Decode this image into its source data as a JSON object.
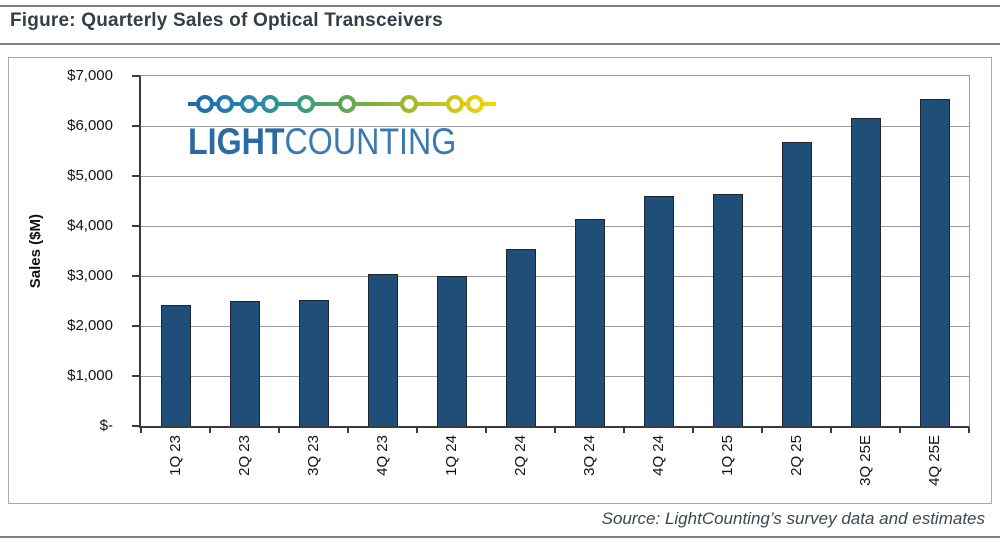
{
  "header": {
    "title": "Figure: Quarterly Sales of Optical Transceivers"
  },
  "logo": {
    "word1": "LIGHT",
    "word2": "COUNTING"
  },
  "footer": {
    "source": "Source: LightCounting’s survey data and estimates"
  },
  "colors": {
    "bar": "#1f4e79",
    "bar_border": "#1e2430",
    "gridline": "#9b9b9b",
    "axis": "#3a3a3a",
    "title_text": "#333e48",
    "source_text": "#3d4754",
    "logo_light": "#2b6ba3",
    "logo_counting": "#3a79b3"
  },
  "chart_data": {
    "type": "bar",
    "title": "Quarterly Sales of Optical Transceivers",
    "categories": [
      "1Q 23",
      "2Q 23",
      "3Q 23",
      "4Q 23",
      "1Q 24",
      "2Q 24",
      "3Q 24",
      "4Q 24",
      "1Q 25",
      "2Q 25",
      "3Q 25E",
      "4Q 25E"
    ],
    "values": [
      2420,
      2500,
      2530,
      3040,
      3010,
      3540,
      4150,
      4600,
      4640,
      5680,
      6160,
      6550
    ],
    "xlabel": "",
    "ylabel": "Sales ($M)",
    "ylim": [
      0,
      7000
    ],
    "yticks": [
      0,
      1000,
      2000,
      3000,
      4000,
      5000,
      6000,
      7000
    ],
    "ytick_labels": [
      "$-",
      "$1,000",
      "$2,000",
      "$3,000",
      "$4,000",
      "$5,000",
      "$6,000",
      "$7,000"
    ],
    "grid": "horizontal",
    "legend": "none",
    "bar_color": "#1f4e79"
  }
}
